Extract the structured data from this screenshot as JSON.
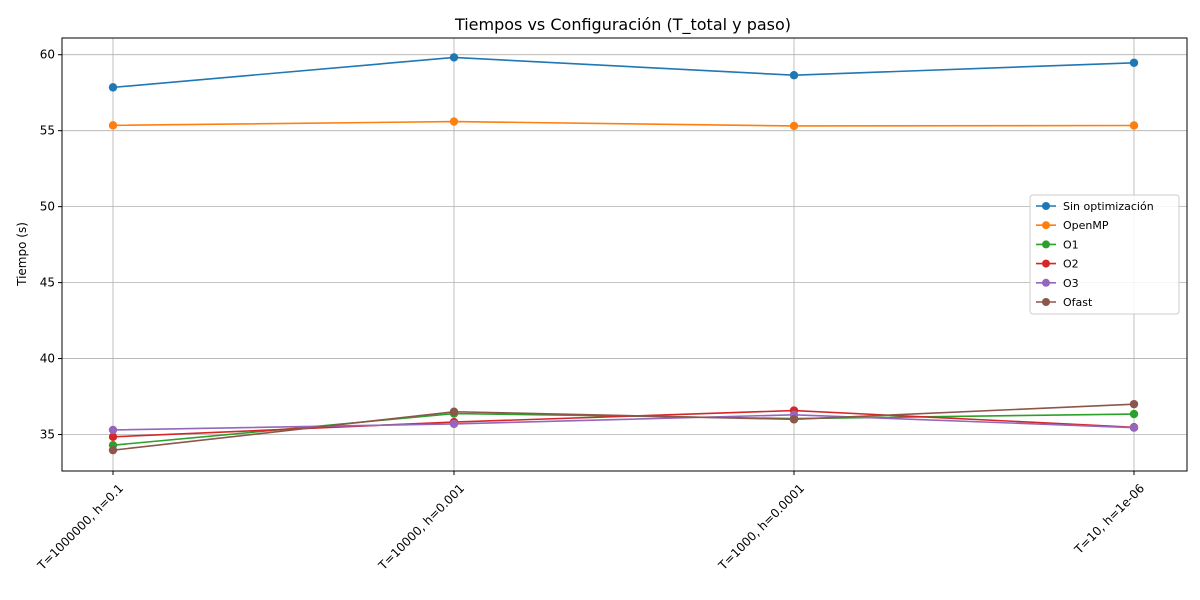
{
  "chart_data": {
    "type": "line",
    "title": "Tiempos vs Configuración (T_total y paso)",
    "xlabel": "",
    "ylabel": "Tiempo (s)",
    "categories": [
      "T=1000000, h=0.1",
      "T=10000, h=0.001",
      "T=1000, h=0.0001",
      "T=10, h=1e-06"
    ],
    "ylim": [
      32.6,
      61.1
    ],
    "yticks": [
      35,
      40,
      45,
      50,
      55,
      60
    ],
    "grid": true,
    "legend_position": "center-right",
    "series": [
      {
        "name": "Sin optimización",
        "color": "#1f77b4",
        "values": [
          57.85,
          59.82,
          58.65,
          59.47
        ]
      },
      {
        "name": "OpenMP",
        "color": "#ff7f0e",
        "values": [
          55.35,
          55.6,
          55.31,
          55.34
        ]
      },
      {
        "name": "O1",
        "color": "#2ca02c",
        "values": [
          34.3,
          36.38,
          36.05,
          36.35
        ]
      },
      {
        "name": "O2",
        "color": "#d62728",
        "values": [
          34.85,
          35.82,
          36.58,
          35.48
        ]
      },
      {
        "name": "O3",
        "color": "#9467bd",
        "values": [
          35.3,
          35.7,
          36.3,
          35.45
        ]
      },
      {
        "name": "Ofast",
        "color": "#8c564b",
        "values": [
          33.97,
          36.5,
          36.0,
          37.0
        ]
      }
    ]
  }
}
